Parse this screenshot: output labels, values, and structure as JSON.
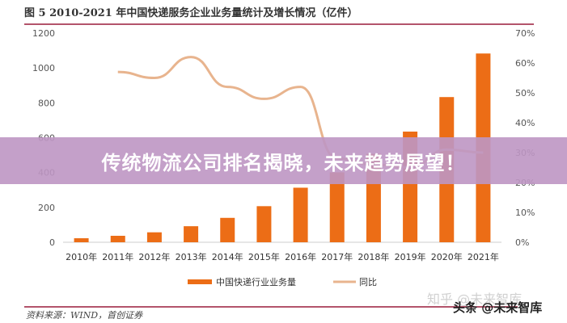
{
  "chart_data": {
    "type": "bar+line",
    "title": "图 5 2010-2021 年中国快递服务企业业务量统计及增长情况（亿件）",
    "categories": [
      "2010年",
      "2011年",
      "2012年",
      "2013年",
      "2014年",
      "2015年",
      "2016年",
      "2017年",
      "2018年",
      "2019年",
      "2020年",
      "2021年"
    ],
    "series": [
      {
        "name": "中国快递行业业务量",
        "type": "bar",
        "axis": "left",
        "color": "#ec6d16",
        "values": [
          23,
          37,
          57,
          92,
          140,
          207,
          313,
          401,
          507,
          635,
          833,
          1083
        ]
      },
      {
        "name": "同比",
        "type": "line",
        "axis": "right",
        "color": "#e8b48e",
        "values": [
          null,
          57,
          55,
          62,
          52,
          48,
          52,
          28,
          26,
          25,
          31,
          30
        ]
      }
    ],
    "left_axis": {
      "ylim": [
        0,
        1200
      ],
      "ticks": [
        "0",
        "200",
        "400",
        "600",
        "800",
        "1000",
        "1200"
      ]
    },
    "right_axis": {
      "ylim": [
        0,
        70
      ],
      "ticks": [
        "0%",
        "10%",
        "20%",
        "30%",
        "40%",
        "50%",
        "60%",
        "70%"
      ]
    },
    "grid": false,
    "legend": "bottom"
  },
  "source": "资料来源：WIND，首创证券",
  "banner": "传统物流公司排名揭晓，未来趋势展望！",
  "watermarks": [
    "知乎 @未来智库",
    "头条 @未来智库"
  ]
}
